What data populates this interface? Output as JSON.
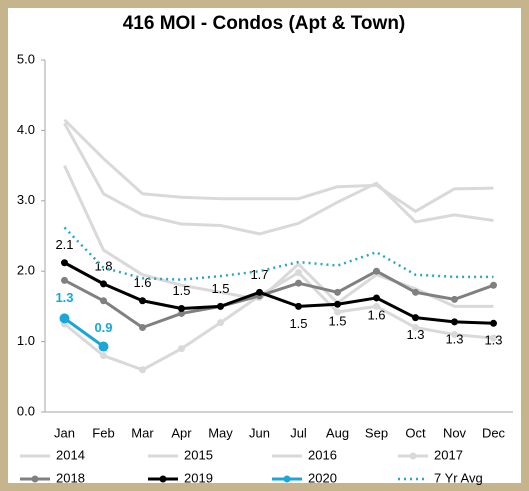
{
  "chart_data": {
    "type": "line",
    "title": "416 MOI - Condos (Apt & Town)",
    "categories": [
      "Jan",
      "Feb",
      "Mar",
      "Apr",
      "May",
      "Jun",
      "Jul",
      "Aug",
      "Sep",
      "Oct",
      "Nov",
      "Dec"
    ],
    "ylim": [
      0,
      5
    ],
    "yticks": [
      {
        "value": 0,
        "label": "0.0"
      },
      {
        "value": 1,
        "label": "1.0"
      },
      {
        "value": 2,
        "label": "2.0"
      },
      {
        "value": 3,
        "label": "3.0"
      },
      {
        "value": 4,
        "label": "4.0"
      },
      {
        "value": 5,
        "label": "5.0"
      }
    ],
    "grid": false,
    "legend": "bottom",
    "series": [
      {
        "name": "2014",
        "color": "#d9d9d9",
        "marker": false,
        "dash": false,
        "values": [
          4.15,
          3.6,
          3.1,
          3.05,
          3.03,
          3.03,
          3.03,
          3.2,
          3.22,
          2.85,
          3.17,
          3.18
        ]
      },
      {
        "name": "2015",
        "color": "#d9d9d9",
        "marker": false,
        "dash": false,
        "values": [
          4.1,
          3.1,
          2.8,
          2.67,
          2.65,
          2.53,
          2.68,
          2.98,
          3.25,
          2.7,
          2.8,
          2.72
        ]
      },
      {
        "name": "2016",
        "color": "#d9d9d9",
        "marker": false,
        "dash": false,
        "values": [
          3.5,
          2.3,
          1.95,
          1.8,
          1.7,
          1.6,
          2.1,
          1.55,
          1.95,
          1.75,
          1.5,
          1.5
        ]
      },
      {
        "name": "2017",
        "color": "#d9d9d9",
        "marker": true,
        "dash": false,
        "values": [
          1.25,
          0.8,
          0.6,
          0.9,
          1.27,
          1.65,
          1.98,
          1.42,
          1.5,
          1.2,
          1.1,
          1.05
        ]
      },
      {
        "name": "2018",
        "color": "#808080",
        "marker": true,
        "dash": false,
        "values": [
          1.87,
          1.58,
          1.2,
          1.4,
          1.5,
          1.65,
          1.83,
          1.7,
          2.0,
          1.7,
          1.6,
          1.8
        ]
      },
      {
        "name": "2019",
        "color": "#000000",
        "marker": true,
        "dash": false,
        "values": [
          2.12,
          1.82,
          1.58,
          1.47,
          1.5,
          1.7,
          1.5,
          1.53,
          1.62,
          1.34,
          1.28,
          1.26
        ],
        "value_labels": [
          "2.1",
          "1.8",
          "1.6",
          "1.5",
          "1.5",
          "1.7",
          "1.5",
          "1.5",
          "1.6",
          "1.3",
          "1.3",
          "1.3"
        ]
      },
      {
        "name": "2020",
        "color": "#1aa6d9",
        "marker": true,
        "dash": false,
        "values": [
          1.33,
          0.93,
          null,
          null,
          null,
          null,
          null,
          null,
          null,
          null,
          null,
          null
        ],
        "value_labels": [
          "1.3",
          "0.9",
          null,
          null,
          null,
          null,
          null,
          null,
          null,
          null,
          null,
          null
        ]
      },
      {
        "name": "7 Yr Avg",
        "color": "#2aa6c4",
        "marker": false,
        "dash": true,
        "values": [
          2.62,
          2.05,
          1.9,
          1.88,
          1.93,
          2.0,
          2.13,
          2.08,
          2.27,
          1.95,
          1.92,
          1.92
        ]
      }
    ]
  }
}
